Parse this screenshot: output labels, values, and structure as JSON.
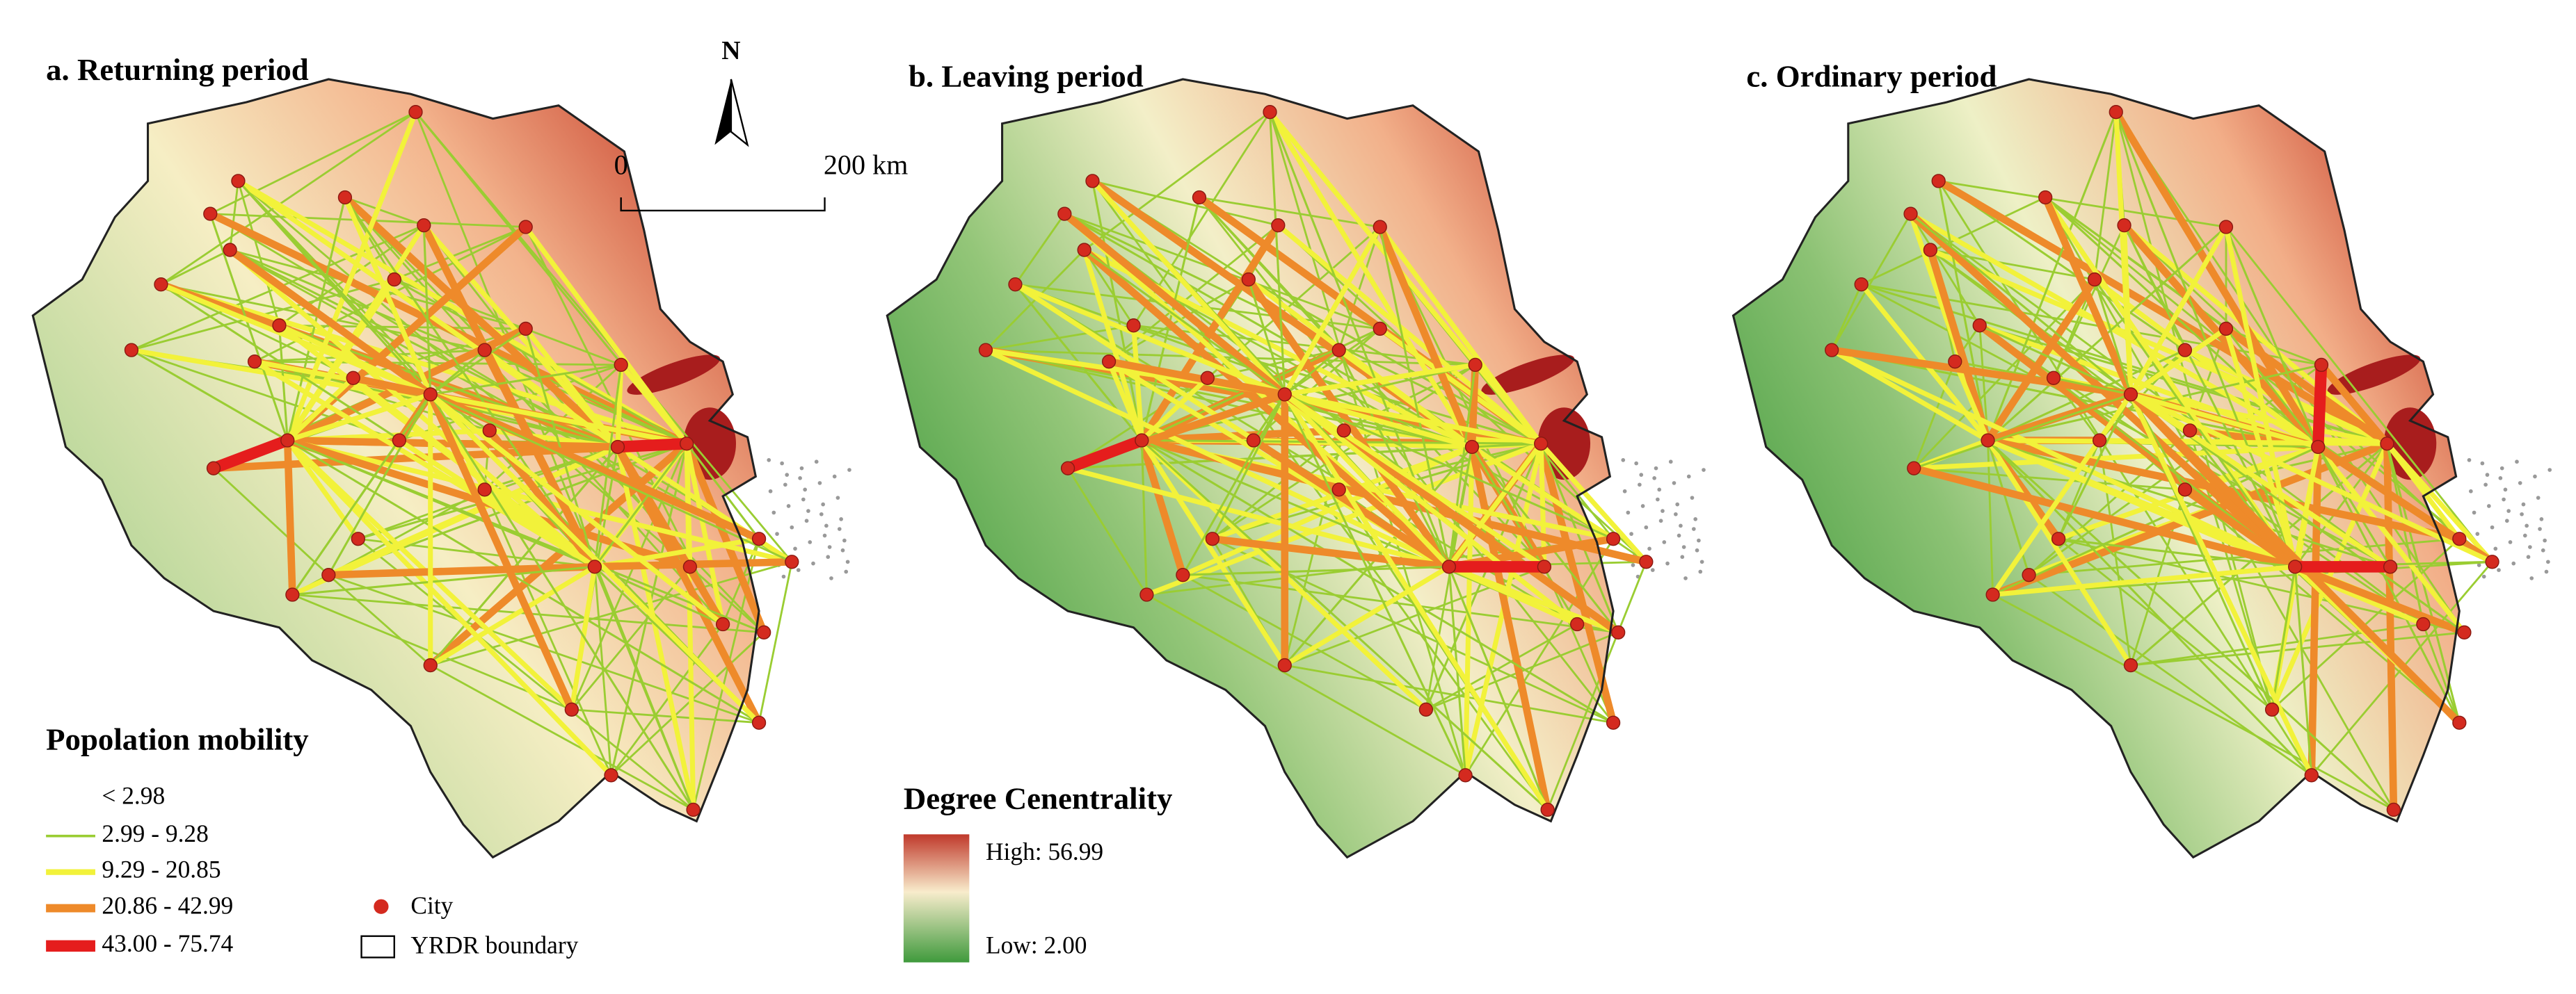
{
  "panels": [
    {
      "title": "a. Returning period"
    },
    {
      "title": "b. Leaving period"
    },
    {
      "title": "c. Ordinary period"
    }
  ],
  "north": "N",
  "scale_bar": {
    "start": "0",
    "end": "200 km"
  },
  "legend": {
    "title": "Popolation mobility",
    "items": [
      "< 2.98",
      "2.99 - 9.28",
      "9.29 - 20.85",
      "20.86 - 42.99",
      "43.00 - 75.74"
    ],
    "city": "City",
    "boundary": "YRDR boundary"
  },
  "centrality_legend": {
    "title": "Degree Cenentrality",
    "high": "High: 56.99",
    "low": "Low: 2.00"
  }
}
